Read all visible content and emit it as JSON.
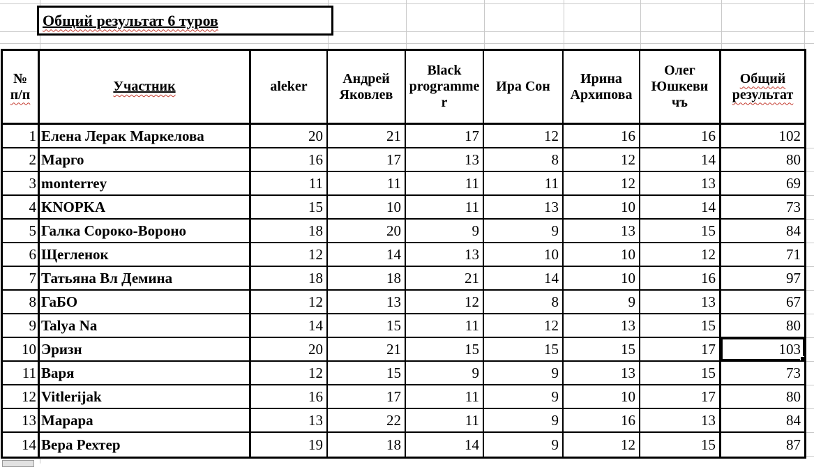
{
  "title": "Общий результат 6 туров",
  "table": {
    "header": {
      "num_col": {
        "line1": "№",
        "line2": "п/п"
      },
      "participant": "Участник",
      "judges": [
        "aleker",
        "Андрей Яковлев",
        "Black programmer",
        "Ира Сон",
        "Ирина Архипова",
        "Олег Юшкевичъ"
      ],
      "total": "Общий результат"
    },
    "rows": [
      {
        "num": 1,
        "name": "Елена Лерак Маркелова",
        "scores": [
          20,
          21,
          17,
          12,
          16,
          16
        ],
        "total": 102
      },
      {
        "num": 2,
        "name": "Марго",
        "scores": [
          16,
          17,
          13,
          8,
          12,
          14
        ],
        "total": 80
      },
      {
        "num": 3,
        "name": "monterrey",
        "scores": [
          11,
          11,
          11,
          11,
          12,
          13
        ],
        "total": 69
      },
      {
        "num": 4,
        "name": "KNOPKA",
        "scores": [
          15,
          10,
          11,
          13,
          10,
          14
        ],
        "total": 73
      },
      {
        "num": 5,
        "name": "Галка Сороко-Вороно",
        "scores": [
          18,
          20,
          9,
          9,
          13,
          15
        ],
        "total": 84
      },
      {
        "num": 6,
        "name": "Щегленок",
        "scores": [
          12,
          14,
          13,
          10,
          10,
          12
        ],
        "total": 71
      },
      {
        "num": 7,
        "name": "Татьяна Вл Демина",
        "scores": [
          18,
          18,
          21,
          14,
          10,
          16
        ],
        "total": 97
      },
      {
        "num": 8,
        "name": "ГаБО",
        "scores": [
          12,
          13,
          12,
          8,
          9,
          13
        ],
        "total": 67
      },
      {
        "num": 9,
        "name": "Talya Na",
        "scores": [
          14,
          15,
          11,
          12,
          13,
          15
        ],
        "total": 80
      },
      {
        "num": 10,
        "name": "Эризн",
        "scores": [
          20,
          21,
          15,
          15,
          15,
          17
        ],
        "total": 103
      },
      {
        "num": 11,
        "name": "Варя",
        "scores": [
          12,
          15,
          9,
          9,
          13,
          15
        ],
        "total": 73
      },
      {
        "num": 12,
        "name": "Vitlerijak",
        "scores": [
          16,
          17,
          11,
          9,
          10,
          17
        ],
        "total": 80
      },
      {
        "num": 13,
        "name": "Марара",
        "scores": [
          13,
          22,
          11,
          9,
          16,
          13
        ],
        "total": 84
      },
      {
        "num": 14,
        "name": "Вера Рехтер",
        "scores": [
          19,
          18,
          14,
          9,
          12,
          15
        ],
        "total": 87
      }
    ]
  },
  "selection": {
    "row_num": 10,
    "column": "total",
    "value": 103
  },
  "colors": {
    "border": "#000000",
    "gridline": "#c9c9c9",
    "spellcheck_wavy": "#c43a2e",
    "background": "#ffffff"
  }
}
